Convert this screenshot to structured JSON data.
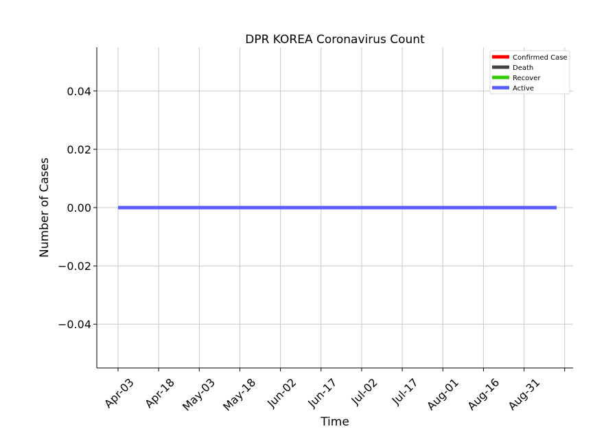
{
  "chart_data": {
    "type": "line",
    "title": "DPR KOREA Coronavirus Count",
    "xlabel": "Time",
    "ylabel": "Number of Cases",
    "x_start": "2020-04-03",
    "x_end": "2020-09-12",
    "x_tick_labels": [
      "Apr-03",
      "Apr-18",
      "May-03",
      "May-18",
      "Jun-02",
      "Jun-17",
      "Jul-02",
      "Jul-17",
      "Aug-01",
      "Aug-16",
      "Aug-31"
    ],
    "x_tick_dates": [
      "2020-04-03",
      "2020-04-18",
      "2020-05-03",
      "2020-05-18",
      "2020-06-02",
      "2020-06-17",
      "2020-07-02",
      "2020-07-17",
      "2020-08-01",
      "2020-08-16",
      "2020-08-31"
    ],
    "ylim": [
      -0.055,
      0.055
    ],
    "y_ticks": [
      0.04,
      0.02,
      0.0,
      -0.02,
      -0.04
    ],
    "y_tick_labels": [
      "0.04",
      "0.02",
      "0.00",
      "−0.02",
      "−0.04"
    ],
    "grid": true,
    "legend_position": "top-right",
    "series": [
      {
        "name": "Confirmed Case",
        "color": "#ff0000",
        "x": [
          "2020-04-03",
          "2020-09-12"
        ],
        "y": [
          0,
          0
        ]
      },
      {
        "name": "Death",
        "color": "#444444",
        "x": [
          "2020-04-03",
          "2020-09-12"
        ],
        "y": [
          0,
          0
        ]
      },
      {
        "name": "Recover",
        "color": "#33cc00",
        "x": [
          "2020-04-03",
          "2020-09-12"
        ],
        "y": [
          0,
          0
        ]
      },
      {
        "name": "Active",
        "color": "#5b5bff",
        "x": [
          "2020-04-03",
          "2020-09-12"
        ],
        "y": [
          0,
          0
        ]
      }
    ]
  }
}
